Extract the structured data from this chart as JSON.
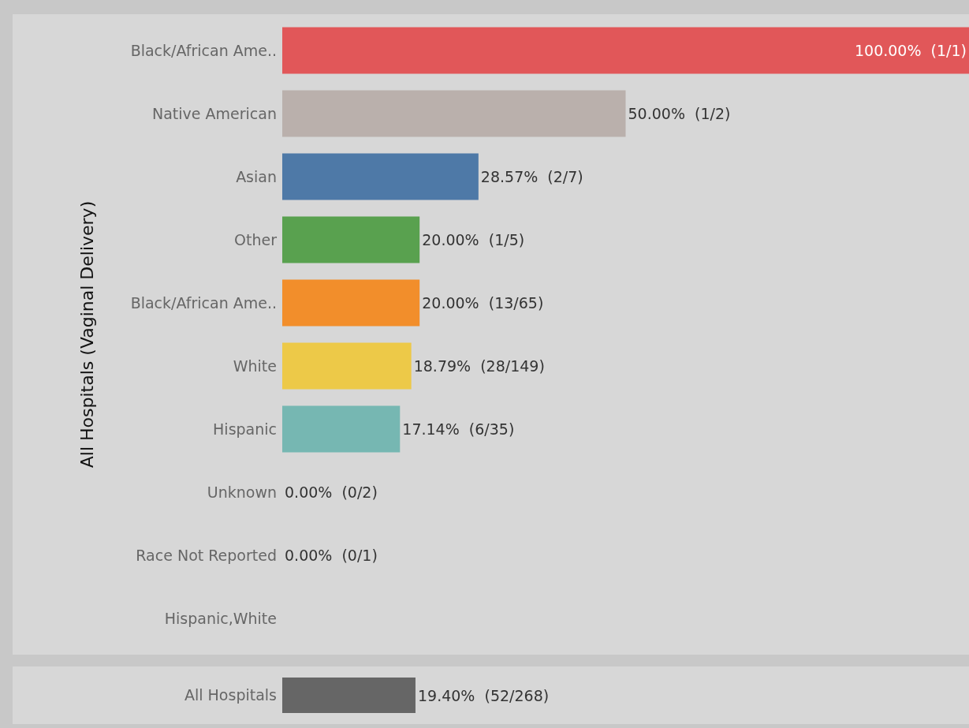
{
  "chart_data": [
    {
      "type": "bar",
      "orientation": "horizontal",
      "ylabel": "All Hospitals (Vaginal Delivery)",
      "categories": [
        "Black/African Ame..",
        "Native American",
        "Asian",
        "Other",
        "Black/African Ame..",
        "White",
        "Hispanic",
        "Unknown",
        "Race Not Reported",
        "Hispanic,White"
      ],
      "values": [
        100,
        50,
        28.57,
        20,
        20,
        18.79,
        17.14,
        0,
        0,
        null
      ],
      "colors": [
        "#e15759",
        "#bab0ac",
        "#4e79a7",
        "#59a14f",
        "#f28e2b",
        "#edc948",
        "#76b7b2",
        "#b07aa1",
        "#ff9da7",
        "#9c755f"
      ],
      "value_labels": [
        "100.00%  (1/1)",
        "50.00%  (1/2)",
        "28.57%  (2/7)",
        "20.00%  (1/5)",
        "20.00%  (13/65)",
        "18.79%  (28/149)",
        "17.14%  (6/35)",
        "0.00%  (0/2)",
        "0.00%  (0/1)",
        null
      ],
      "grid": false,
      "legend": false
    },
    {
      "type": "bar",
      "orientation": "horizontal",
      "categories": [
        "All Hospitals"
      ],
      "values": [
        19.4
      ],
      "colors": [
        "#666666"
      ],
      "value_labels": [
        "19.40%  (52/268)"
      ],
      "grid": false,
      "legend": false
    }
  ]
}
